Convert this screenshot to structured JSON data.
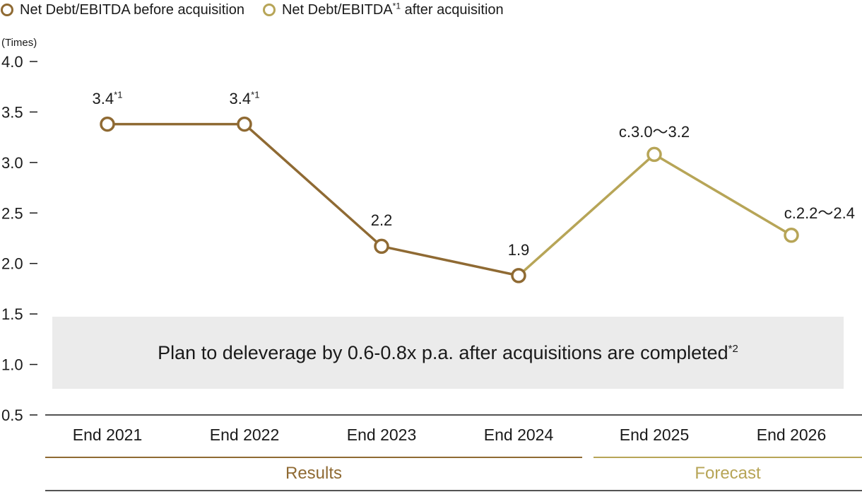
{
  "legend": {
    "before": {
      "label": "Net Debt/EBITDA before acquisition",
      "color": "#8f6a33"
    },
    "after": {
      "label_main": "Net Debt/EBITDA",
      "label_sup": "*1",
      "label_tail": " after acquisition",
      "color": "#b7a557"
    }
  },
  "note": {
    "text": "Plan to deleverage by 0.6-0.8x p.a. after acquisitions are completed",
    "sup": "*2"
  },
  "groups": [
    {
      "label": "Results",
      "color": "#8f6a33"
    },
    {
      "label": "Forecast",
      "color": "#b7a557"
    }
  ],
  "chart_data": {
    "type": "line",
    "ylabel": "(Times)",
    "ylim": [
      0.5,
      4.0
    ],
    "yticks": [
      "4.0",
      "3.5",
      "3.0",
      "2.5",
      "2.0",
      "1.5",
      "1.0",
      "0.5"
    ],
    "categories": [
      "End 2021",
      "End 2022",
      "End 2023",
      "End 2024",
      "End 2025",
      "End 2026"
    ],
    "series": [
      {
        "name": "Net Debt/EBITDA before acquisition",
        "color": "#8f6a33",
        "x": [
          "End 2021",
          "End 2022",
          "End 2023",
          "End 2024"
        ],
        "values": [
          3.38,
          3.38,
          2.17,
          1.88
        ]
      },
      {
        "name": "Net Debt/EBITDA*1 after acquisition",
        "color": "#b7a557",
        "x": [
          "End 2024",
          "End 2025",
          "End 2026"
        ],
        "values": [
          1.88,
          3.08,
          2.28
        ]
      }
    ],
    "data_labels": [
      {
        "text": "3.4",
        "sup": "*1"
      },
      {
        "text": "3.4",
        "sup": "*1"
      },
      {
        "text": "2.2",
        "sup": ""
      },
      {
        "text": "1.9",
        "sup": ""
      },
      {
        "text": "c.3.0〜3.2",
        "sup": ""
      },
      {
        "text": "c.2.2〜2.4",
        "sup": ""
      }
    ]
  }
}
